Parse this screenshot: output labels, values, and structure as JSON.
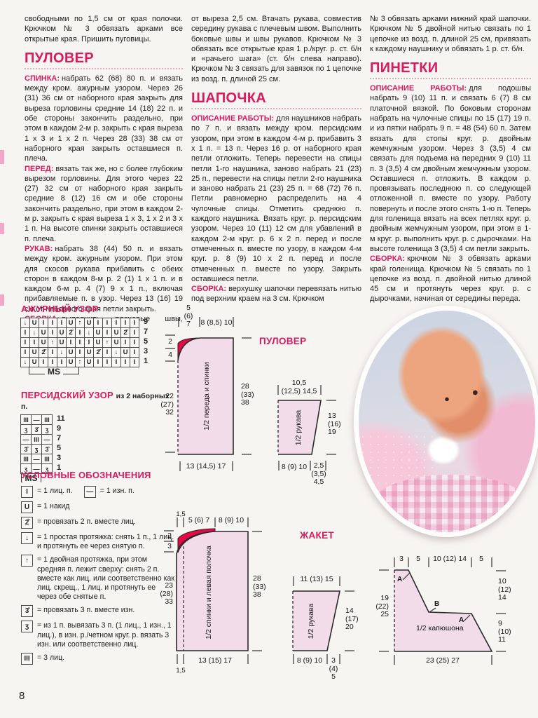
{
  "page": {
    "number": "8"
  },
  "colors": {
    "accent": "#d81b60",
    "diagram_fill": "#f2dcea",
    "neck_red": "#e50a46",
    "paper": "#f7f5f1"
  },
  "columns": {
    "col1": {
      "intro": "свободными по 1,5 см от края полочки. Крючком № 3 обвязать арками все открытые края. Пришить пуговицы.",
      "heading": "ПУЛОВЕР",
      "paragraphs": [
        {
          "lead": "СПИНКА:",
          "text": "набрать 62 (68) 80 п. и вязать между кром. ажурным узором. Через 26 (31) 36 см от наборного края закрыть для выреза горловины средние 14 (18) 22 п. и обе стороны закончить раздельно, при этом в каждом 2-м р. закрыть с края выреза 1 х 3 и 1 х 2 п. Через 28 (33) 38 см от наборного края закрыть оставшиеся п. плеча."
        },
        {
          "lead": "ПЕРЕД:",
          "text": "вязать так же, но с более глубоким вырезом горловины. Для этого через 22 (27) 32 см от наборного края закрыть средние 8 (12) 16 см и обе стороны закончить раздельно, при этом в каждом 2-м р. закрыть с края выреза 1 х 3, 1 х 2 и 3 х 1 п. На высоте спинки закрыть оставшиеся п. плеча."
        },
        {
          "lead": "РУКАВ:",
          "text": "набрать 38 (44) 50 п. и вязать между кром. ажурным узором. При этом для скосов рукава прибавить с обеих сторон в каждом 8-м р. 2 (1) 1 х 1 п. и в каждом 6-м р. 4 (7) 9 х 1 п., включая прибавляемые п. в узор. Через 13 (16) 19 см от наборного края петли закрыть."
        },
        {
          "lead": "СБОРКА:",
          "text": "выполнить плечевые швы, отступив"
        }
      ]
    },
    "col2": {
      "intro": "от выреза 2,5 см. Втачать рукава, совместив середину рукава с плечевым швом. Выполнить боковые швы и швы рукавов. Крючком № 3 обвязать все открытые края 1 р./круг. р. ст. б/н и «рачьего шага» (ст. б/н слева направо). Крючком № 3 связать для завязок по 1 цепочке из возд. п. длиной 25 см.",
      "heading": "ШАПОЧКА",
      "paragraphs": [
        {
          "lead": "ОПИСАНИЕ РАБОТЫ:",
          "text": "для наушников набрать по 7 п. и вязать между кром. персидским узором, при этом в каждом 4-м р. прибавить 3 х 1 п. = 13 п. Через 16 р. от наборного края петли отложить. Теперь перевести на спицы петли 1-го наушника, заново набрать 21 (23) 25 п., перевести на спицы петли 2-го наушника и заново набрать 21 (23) 25 п. = 68 (72) 76 п. Петли равномерно распределить на 4 чулочные спицы. Отметить среднюю п. каждого наушника. Вязать круг. р. персидским узором. Через 10 (11) 12 см для убавлений в каждом 2-м круг. р. 6 х 2 п. перед и после отмеченных п. вместе по узору, в каждом 4-м круг. р. 8 (9) 10 х 2 п. перед и после отмеченных п. вместе по узору. Закрыть оставшиеся петли."
        },
        {
          "lead": "СБОРКА:",
          "text": "верхушку шапочки перевязать нитью под верхним краем на 3 см. Крючком"
        }
      ]
    },
    "col3": {
      "intro": "№ 3 обвязать арками нижний край шапочки. Крючком № 5 двойной нитью связать по 1 цепочке из возд. п. длиной 25 см, привязать к каждому наушнику и обвязать 1 р. ст. б/н.",
      "heading": "ПИНЕТКИ",
      "paragraphs": [
        {
          "lead": "ОПИСАНИЕ РАБОТЫ:",
          "text": "для подошвы набрать 9 (10) 11 п. и связать 6 (7) 8 см платочной вязкой. По боковым сторонам набрать на чулочные спицы по 15 (17) 19 п. и из пятки набрать 9 п. = 48 (54) 60 п. Затем вязать для стопы круг. р. двойным жемчужным узором. Через 3 (3,5) 4 см связать для подъема на передних 9 (10) 11 п. 3 (3,5) 4 см двойным жемчужным узором. Оставшиеся п. отложить. В каждом р. провязывать последнюю п. со следующей отложенной п. вместе по узору. Работу повернуть и после этого снять 1-ю п. Теперь для голенища вязать на всех петлях круг. р. двойным жемчужным узором, при этом в 1-м круг. р. выполнить круг. р. с дырочками. На высоте голенища 3 (3,5) 4 см петли закрыть."
        },
        {
          "lead": "СБОРКА:",
          "text": "крючком № 3 обвязать арками край голенища. Крючком № 5 связать по 1 цепочке из возд. п. двойной нитью длиной 45 см и протянуть через круг. р. с дырочками, начиная от середины переда."
        }
      ]
    }
  },
  "chart_data": [
    {
      "type": "table",
      "name": "azhur",
      "title": "АЖУРНЫЙ УЗОР",
      "ms_label": "MS",
      "rows": [
        {
          "label": "9",
          "cells": [
            "↓",
            "U",
            "I",
            "I",
            "I",
            "U",
            "↑",
            "U",
            "I",
            "I",
            "I",
            "I",
            "I"
          ]
        },
        {
          "label": "7",
          "cells": [
            "I",
            "↓",
            "U",
            "I",
            "U",
            "2̌",
            "I",
            "↓",
            "U",
            "I",
            "U",
            "2̌",
            "I"
          ]
        },
        {
          "label": "5",
          "cells": [
            "I",
            "I",
            "U",
            "↑",
            "U",
            "I",
            "I",
            "I",
            "U",
            "↑",
            "U",
            "I",
            "I"
          ]
        },
        {
          "label": "3",
          "cells": [
            "I",
            "U",
            "2̌",
            "I",
            "↓",
            "U",
            "I",
            "U",
            "2̌",
            "I",
            "↓",
            "U",
            "I"
          ]
        },
        {
          "label": "1",
          "cells": [
            "↓",
            "U",
            "I",
            "I",
            "I",
            "U",
            "↑",
            "U",
            "I",
            "I",
            "I",
            "I",
            "I"
          ]
        }
      ]
    },
    {
      "type": "table",
      "name": "persian",
      "title": "ПЕРСИДСКИЙ УЗОР",
      "subtitle": "из 2 наборных п.",
      "ms_label": "MS",
      "rows": [
        {
          "label": "11",
          "cells": [
            "III",
            "—",
            "III"
          ]
        },
        {
          "label": "9",
          "cells": [
            "ʒ",
            "3̂",
            "ʒ"
          ]
        },
        {
          "label": "7",
          "cells": [
            "—",
            "III",
            "—"
          ]
        },
        {
          "label": "5",
          "cells": [
            "3̂",
            "ʒ",
            "3̂"
          ]
        },
        {
          "label": "3",
          "cells": [
            "III",
            "—",
            "III"
          ]
        },
        {
          "label": "1",
          "cells": [
            "ʒ",
            "—",
            "ʒ"
          ]
        }
      ]
    }
  ],
  "legend": {
    "title": "УСЛОВНЫЕ ОБОЗНАЧЕНИЯ",
    "items": [
      {
        "symbol": "I",
        "text": "= 1 лиц. п."
      },
      {
        "symbol": "—",
        "text": "= 1 изн. п."
      },
      {
        "symbol": "U",
        "text": "= 1 накид"
      },
      {
        "symbol": "2̌",
        "text": "= провязать 2 п. вместе лиц."
      },
      {
        "symbol": "↓",
        "text": "= 1 простая протяжка: снять 1 п., 1 лиц. и протянуть ее через снятую п."
      },
      {
        "symbol": "↑",
        "text": "= 1 двойная протяжка, при этом средняя п. лежит сверху: снять 2 п. вместе как лиц. или соответственно как лиц. скрещ., 1 лиц. и протянуть ее через обе снятые п."
      },
      {
        "symbol": "3̂",
        "text": "= провязать 3 п. вместе изн."
      },
      {
        "symbol": "ʒ",
        "text": "= из 1 п. вывязать 3 п. (1 лиц., 1 изн., 1 лиц.), в изн. р./четном круг. р. вязать 3 изн. или соответственно лиц."
      },
      {
        "symbol": "III",
        "text": "= 3 лиц."
      }
    ]
  },
  "diagrams": {
    "pullover": {
      "label": "ПУЛОВЕР",
      "body": {
        "name": "1/2 переда и спинки",
        "top_left": [
          "5",
          "(6)",
          "7"
        ],
        "top_right": "8 (8,5) 10",
        "neck_1": "2",
        "neck_2": "4",
        "left": [
          "22",
          "(27)",
          "32"
        ],
        "right": [
          "28",
          "(33)",
          "38"
        ],
        "bottom": "13 (14,5) 17"
      },
      "sleeve": {
        "name": "1/2 рукава",
        "top_1": "10,5",
        "top_2": "(12,5) 14,5",
        "right": [
          "13",
          "(16)",
          "19"
        ],
        "bottom": "8 (9) 10",
        "bottom_right": [
          "2,5",
          "(3,5)",
          "4,5"
        ]
      }
    },
    "jacket": {
      "label": "ЖАКЕТ",
      "body": {
        "name": "1/2 спинки и левая полочка",
        "band_top": "1,5",
        "top_left": "5 (6) 7",
        "top_right": "8 (9) 10",
        "neck_1": "2",
        "neck_2": "3",
        "left": [
          "23",
          "(28)",
          "33"
        ],
        "right": [
          "28",
          "(33)",
          "38"
        ],
        "bottom": "13 (15) 17",
        "band_bottom": "1,5"
      },
      "sleeve": {
        "name": "1/2 рукава",
        "top": "11 (13) 15",
        "right": [
          "14",
          "(17)",
          "20"
        ],
        "bottom": "8 (9) 10",
        "bottom_right": [
          "3",
          "(4)",
          "5"
        ]
      },
      "hood": {
        "name": "1/2 капюшона",
        "top": [
          "3",
          "5",
          "10 (12) 14",
          "5"
        ],
        "left": [
          "19",
          "(22)",
          "25"
        ],
        "right_top": [
          "10",
          "(12)",
          "14"
        ],
        "right_bottom": [
          "9",
          "(10)",
          "11"
        ],
        "bottom": "23 (25) 27",
        "points": [
          "A",
          "B",
          "A"
        ]
      }
    }
  }
}
